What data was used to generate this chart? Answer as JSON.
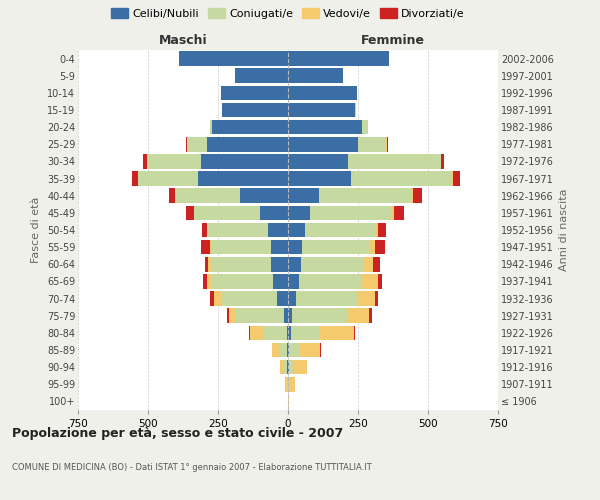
{
  "age_groups": [
    "100+",
    "95-99",
    "90-94",
    "85-89",
    "80-84",
    "75-79",
    "70-74",
    "65-69",
    "60-64",
    "55-59",
    "50-54",
    "45-49",
    "40-44",
    "35-39",
    "30-34",
    "25-29",
    "20-24",
    "15-19",
    "10-14",
    "5-9",
    "0-4"
  ],
  "birth_years": [
    "≤ 1906",
    "1907-1911",
    "1912-1916",
    "1917-1921",
    "1922-1926",
    "1927-1931",
    "1932-1936",
    "1937-1941",
    "1942-1946",
    "1947-1951",
    "1952-1956",
    "1957-1961",
    "1962-1966",
    "1967-1971",
    "1972-1976",
    "1977-1981",
    "1982-1986",
    "1987-1991",
    "1992-1996",
    "1997-2001",
    "2002-2006"
  ],
  "colors": {
    "celibi": "#3a6ea5",
    "coniugati": "#c5d9a0",
    "vedovi": "#f5c96e",
    "divorziati": "#cc2222"
  },
  "males": {
    "celibi": [
      0,
      1,
      2,
      3,
      5,
      15,
      40,
      55,
      60,
      60,
      70,
      100,
      170,
      320,
      310,
      290,
      270,
      235,
      240,
      190,
      390
    ],
    "coniugati": [
      0,
      3,
      12,
      25,
      80,
      175,
      200,
      215,
      215,
      215,
      215,
      235,
      230,
      215,
      195,
      70,
      10,
      2,
      0,
      0,
      0
    ],
    "vedovi": [
      0,
      5,
      15,
      30,
      50,
      20,
      25,
      20,
      10,
      5,
      3,
      2,
      2,
      1,
      0,
      0,
      0,
      0,
      0,
      0,
      0
    ],
    "divorziati": [
      0,
      0,
      0,
      0,
      3,
      8,
      12,
      15,
      12,
      30,
      20,
      28,
      22,
      22,
      12,
      5,
      0,
      0,
      0,
      0,
      0
    ]
  },
  "females": {
    "celibi": [
      0,
      1,
      2,
      5,
      10,
      15,
      30,
      40,
      45,
      50,
      60,
      80,
      110,
      225,
      215,
      250,
      265,
      240,
      245,
      195,
      360
    ],
    "coniugati": [
      0,
      3,
      15,
      35,
      105,
      195,
      215,
      225,
      225,
      240,
      250,
      290,
      330,
      360,
      330,
      100,
      20,
      3,
      0,
      0,
      0
    ],
    "vedovi": [
      2,
      20,
      50,
      75,
      120,
      80,
      65,
      55,
      35,
      20,
      12,
      8,
      5,
      3,
      2,
      2,
      0,
      0,
      0,
      0,
      0
    ],
    "divorziati": [
      0,
      0,
      0,
      2,
      5,
      10,
      12,
      15,
      22,
      35,
      28,
      35,
      35,
      25,
      10,
      5,
      0,
      0,
      0,
      0,
      0
    ]
  },
  "title": "Popolazione per età, sesso e stato civile - 2007",
  "subtitle": "COMUNE DI MEDICINA (BO) - Dati ISTAT 1° gennaio 2007 - Elaborazione TUTTITALIA.IT",
  "xlabel_left": "Maschi",
  "xlabel_right": "Femmine",
  "ylabel_left": "Fasce di età",
  "ylabel_right": "Anni di nascita",
  "xlim": 750,
  "background_color": "#f0f0eb",
  "plot_background": "#ffffff",
  "legend_labels": [
    "Celibi/Nubili",
    "Coniugati/e",
    "Vedovi/e",
    "Divorziati/e"
  ]
}
